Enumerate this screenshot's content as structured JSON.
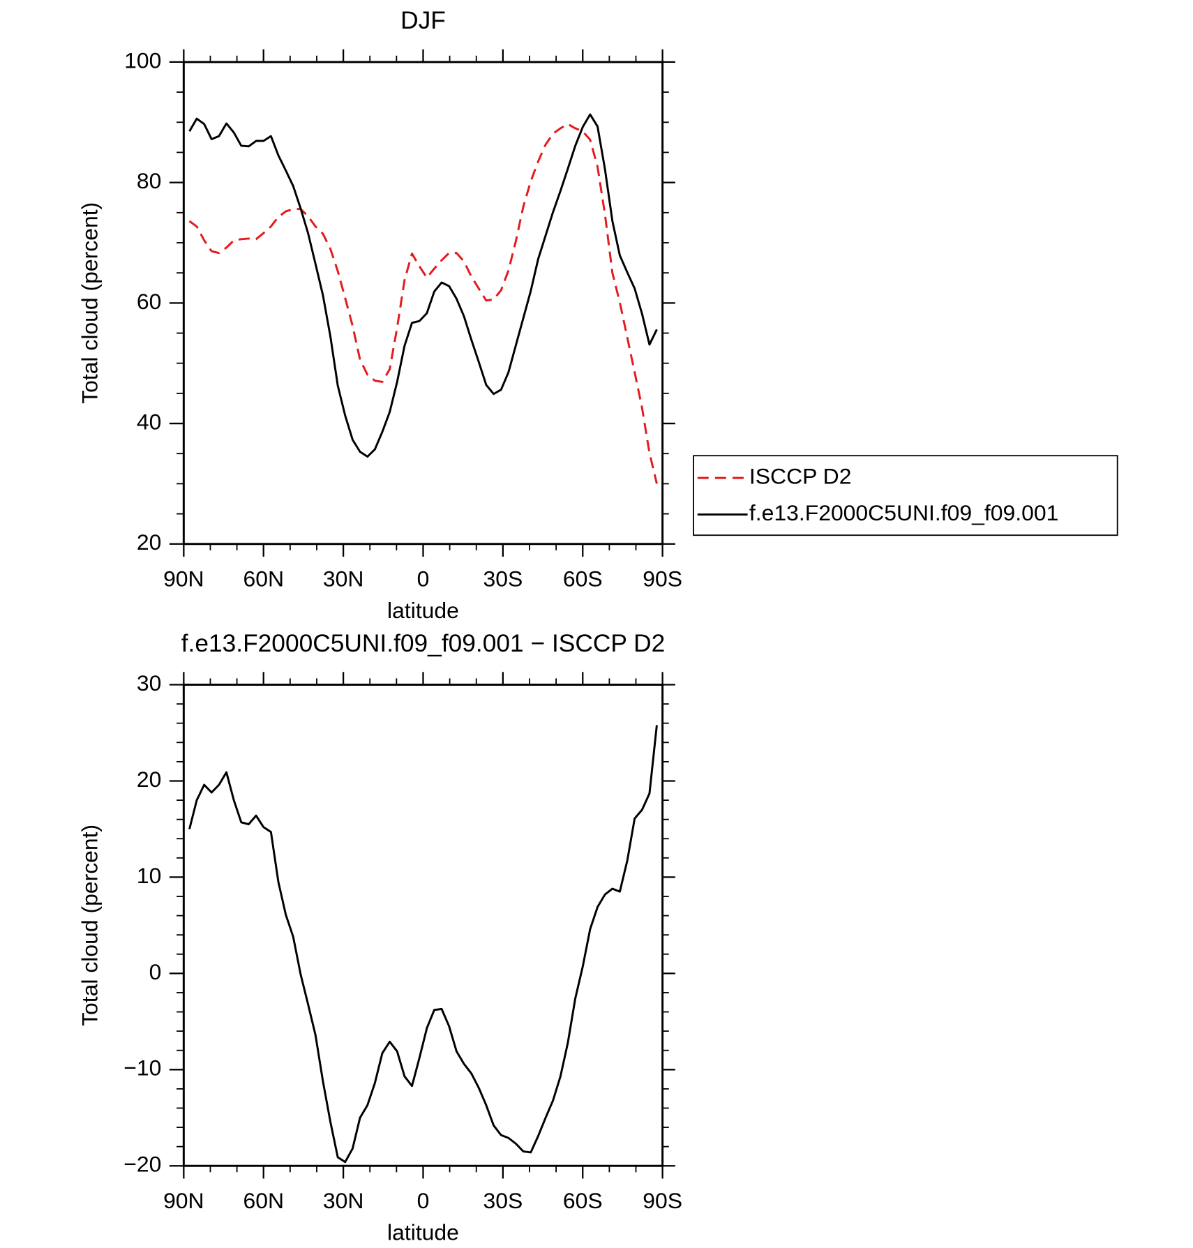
{
  "chart_data": [
    {
      "type": "line",
      "title": "DJF",
      "xlabel": "latitude",
      "ylabel": "Total cloud (percent)",
      "x": [
        87.86,
        85.1,
        82.31,
        79.53,
        76.74,
        73.95,
        71.16,
        68.37,
        65.58,
        62.79,
        60.0,
        57.21,
        54.42,
        51.63,
        48.84,
        46.05,
        43.26,
        40.47,
        37.67,
        34.88,
        32.09,
        29.3,
        26.51,
        23.72,
        20.93,
        18.14,
        15.35,
        12.56,
        9.77,
        6.98,
        4.19,
        1.4,
        -1.4,
        -4.19,
        -6.98,
        -9.77,
        -12.56,
        -15.35,
        -18.14,
        -20.93,
        -23.72,
        -26.51,
        -29.3,
        -32.09,
        -34.88,
        -37.67,
        -40.47,
        -43.26,
        -46.05,
        -48.84,
        -51.63,
        -54.42,
        -57.21,
        -60.0,
        -62.79,
        -65.58,
        -68.37,
        -71.16,
        -73.95,
        -76.74,
        -79.53,
        -82.31,
        -85.1,
        -87.86
      ],
      "series": [
        {
          "name": "ISCCP D2",
          "color": "#e41a1c",
          "linestyle": "dashed",
          "values": [
            73.6,
            72.7,
            70.4,
            68.6,
            68.3,
            69.2,
            70.4,
            70.6,
            70.7,
            70.6,
            71.6,
            72.7,
            74.3,
            75.2,
            75.6,
            75.6,
            74.4,
            72.7,
            71.5,
            69.0,
            65.3,
            60.8,
            56.2,
            50.6,
            48.1,
            47.1,
            46.9,
            49.0,
            55.9,
            63.8,
            68.2,
            66.1,
            64.2,
            65.7,
            67.1,
            68.3,
            68.3,
            66.9,
            64.4,
            62.4,
            60.4,
            60.6,
            62.1,
            65.4,
            70.3,
            76.0,
            80.2,
            83.5,
            86.3,
            88.1,
            89.0,
            89.7,
            89.0,
            88.5,
            87.1,
            82.6,
            74.7,
            65.0,
            60.1,
            54.3,
            48.5,
            42.6,
            35.1,
            30.0
          ]
        },
        {
          "name": "f.e13.F2000C5UNI.f09_f09.001",
          "color": "#000000",
          "linestyle": "solid",
          "values": [
            88.5,
            90.6,
            89.7,
            87.2,
            87.7,
            89.8,
            88.3,
            86.1,
            86.0,
            86.9,
            86.9,
            87.7,
            84.5,
            82.0,
            79.4,
            75.7,
            71.6,
            66.5,
            61.3,
            54.5,
            46.3,
            41.3,
            37.3,
            35.3,
            34.5,
            35.7,
            38.6,
            41.9,
            46.9,
            52.9,
            56.7,
            57.0,
            58.3,
            61.9,
            63.4,
            62.8,
            60.7,
            57.8,
            53.9,
            50.2,
            46.4,
            44.9,
            45.6,
            48.5,
            53.0,
            57.5,
            62.0,
            67.3,
            71.2,
            75.1,
            78.6,
            82.3,
            86.1,
            89.2,
            91.3,
            89.3,
            82.2,
            73.6,
            67.9,
            65.1,
            62.4,
            58.2,
            53.1,
            55.6
          ]
        }
      ],
      "xlim": [
        90,
        -90
      ],
      "xticks": [
        {
          "value": 90,
          "label": "90N"
        },
        {
          "value": 60,
          "label": "60N"
        },
        {
          "value": 30,
          "label": "30N"
        },
        0,
        {
          "value": -30,
          "label": "30S"
        },
        {
          "value": -60,
          "label": "60S"
        },
        {
          "value": -90,
          "label": "90S"
        }
      ],
      "xminorticks": [
        80,
        70,
        50,
        40,
        20,
        10,
        -10,
        -20,
        -40,
        -50,
        -70,
        -80
      ],
      "ylim": [
        20,
        100
      ],
      "yticks": [
        20,
        40,
        60,
        80,
        100
      ],
      "yminorticks": [
        25,
        30,
        35,
        45,
        50,
        55,
        65,
        70,
        75,
        85,
        90,
        95
      ],
      "legend": "right"
    },
    {
      "type": "line",
      "title": "f.e13.F2000C5UNI.f09_f09.001 − ISCCP D2",
      "xlabel": "latitude",
      "ylabel": "Total cloud (percent)",
      "x": [
        87.86,
        85.1,
        82.31,
        79.53,
        76.74,
        73.95,
        71.16,
        68.37,
        65.58,
        62.79,
        60.0,
        57.21,
        54.42,
        51.63,
        48.84,
        46.05,
        43.26,
        40.47,
        37.67,
        34.88,
        32.09,
        29.3,
        26.51,
        23.72,
        20.93,
        18.14,
        15.35,
        12.56,
        9.77,
        6.98,
        4.19,
        1.4,
        -1.4,
        -4.19,
        -6.98,
        -9.77,
        -12.56,
        -15.35,
        -18.14,
        -20.93,
        -23.72,
        -26.51,
        -29.3,
        -32.09,
        -34.88,
        -37.67,
        -40.47,
        -43.26,
        -46.05,
        -48.84,
        -51.63,
        -54.42,
        -57.21,
        -60.0,
        -62.79,
        -65.58,
        -68.37,
        -71.16,
        -73.95,
        -76.74,
        -79.53,
        -82.31,
        -85.1,
        -87.86
      ],
      "series": [
        {
          "color": "#000000",
          "linestyle": "solid",
          "values": [
            15.0,
            18.0,
            19.6,
            18.8,
            19.6,
            20.9,
            18.0,
            15.7,
            15.5,
            16.4,
            15.2,
            14.7,
            9.5,
            6.1,
            3.8,
            -0.1,
            -3.2,
            -6.4,
            -11.2,
            -15.4,
            -19.1,
            -19.6,
            -18.2,
            -15.0,
            -13.7,
            -11.4,
            -8.3,
            -7.1,
            -8.1,
            -10.7,
            -11.7,
            -8.8,
            -5.7,
            -3.8,
            -3.7,
            -5.5,
            -8.1,
            -9.4,
            -10.4,
            -11.9,
            -13.7,
            -15.8,
            -16.8,
            -17.1,
            -17.7,
            -18.5,
            -18.6,
            -16.9,
            -15.0,
            -13.2,
            -10.7,
            -7.2,
            -2.6,
            0.7,
            4.6,
            6.9,
            8.2,
            8.8,
            8.5,
            11.7,
            16.1,
            17.0,
            18.7,
            25.8
          ]
        }
      ],
      "xlim": [
        90,
        -90
      ],
      "xticks": [
        {
          "value": 90,
          "label": "90N"
        },
        {
          "value": 60,
          "label": "60N"
        },
        {
          "value": 30,
          "label": "30N"
        },
        0,
        {
          "value": -30,
          "label": "30S"
        },
        {
          "value": -60,
          "label": "60S"
        },
        {
          "value": -90,
          "label": "90S"
        }
      ],
      "xminorticks": [
        80,
        70,
        50,
        40,
        20,
        10,
        -10,
        -20,
        -40,
        -50,
        -70,
        -80
      ],
      "ylim": [
        -20,
        30
      ],
      "yticks": [
        {
          "value": -20,
          "label": "−20"
        },
        {
          "value": -10,
          "label": "−10"
        },
        0,
        10,
        20,
        30
      ],
      "yminorticks": [
        -18,
        -16,
        -14,
        -12,
        -8,
        -6,
        -4,
        -2,
        2,
        4,
        6,
        8,
        12,
        14,
        16,
        18,
        22,
        24,
        26,
        28
      ]
    }
  ]
}
